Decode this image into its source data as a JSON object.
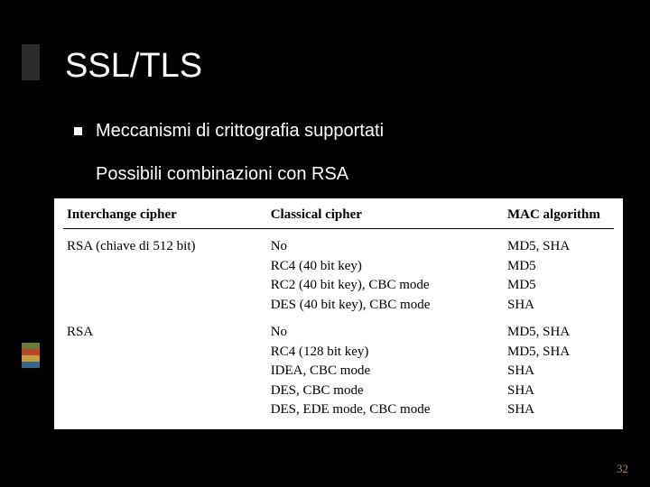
{
  "title": "SSL/TLS",
  "bullet": "Meccanismi di crittografia supportati",
  "subtext": "Possibili combinazioni con RSA",
  "headers": {
    "c1": "Interchange cipher",
    "c2": "Classical cipher",
    "c3": "MAC algorithm"
  },
  "rows": [
    {
      "c1": "RSA (chiave di 512 bit)",
      "c2": "No",
      "c3": "MD5, SHA",
      "group_start": true
    },
    {
      "c1": "",
      "c2": "RC4 (40 bit key)",
      "c3": "MD5",
      "group_start": false
    },
    {
      "c1": "",
      "c2": "RC2 (40 bit key), CBC mode",
      "c3": "MD5",
      "group_start": false
    },
    {
      "c1": "",
      "c2": "DES (40 bit key), CBC mode",
      "c3": "SHA",
      "group_start": false
    },
    {
      "c1": "RSA",
      "c2": "No",
      "c3": "MD5, SHA",
      "group_start": true
    },
    {
      "c1": "",
      "c2": "RC4 (128 bit key)",
      "c3": "MD5, SHA",
      "group_start": false
    },
    {
      "c1": "",
      "c2": "IDEA, CBC mode",
      "c3": "SHA",
      "group_start": false
    },
    {
      "c1": "",
      "c2": "DES, CBC mode",
      "c3": "SHA",
      "group_start": false
    },
    {
      "c1": "",
      "c2": "DES, EDE mode, CBC mode",
      "c3": "SHA",
      "group_start": false
    }
  ],
  "accent_colors": [
    "#6a7a3a",
    "#b84a2a",
    "#c99a3a",
    "#3a6a8a"
  ],
  "page_number": "32"
}
